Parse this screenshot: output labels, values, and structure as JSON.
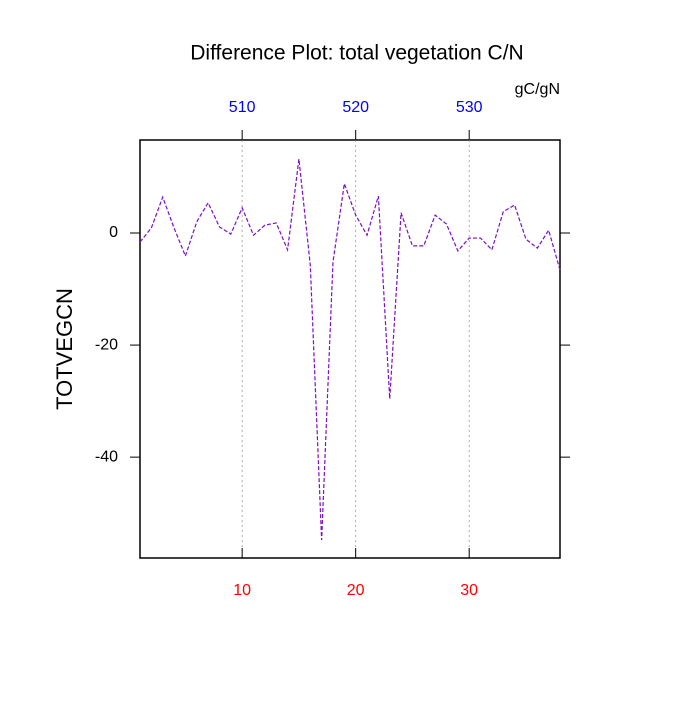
{
  "chart_data": {
    "type": "line",
    "title": "Difference Plot: total vegetation C/N",
    "ylabel": "TOTVEGCN",
    "units": "gC/gN",
    "x": [
      1,
      2,
      3,
      4,
      5,
      6,
      7,
      8,
      9,
      10,
      11,
      12,
      13,
      14,
      15,
      16,
      17,
      18,
      19,
      20,
      21,
      22,
      23,
      24,
      25,
      26,
      27,
      28,
      29,
      30,
      31,
      32,
      33,
      34,
      35,
      36,
      37,
      38
    ],
    "series": [
      {
        "name": "TOTVEGCN",
        "color": "#7a10c8",
        "values": [
          -1.6,
          0.9,
          6.4,
          0.9,
          -4.1,
          2,
          5.4,
          1.1,
          -0.2,
          4.5,
          -0.4,
          1.4,
          1.8,
          -3,
          13.2,
          -5.7,
          -54.8,
          -5.2,
          8.8,
          3.2,
          -0.4,
          6.6,
          -29.6,
          3.6,
          -2.3,
          -2.3,
          3.2,
          1.6,
          -3.2,
          -0.9,
          -0.9,
          -3,
          3.8,
          5,
          -1.1,
          -2.7,
          0.5,
          -6.6
        ]
      }
    ],
    "xlim": [
      1,
      38
    ],
    "xticks": [
      10,
      20,
      30
    ],
    "xtick_color": "#ff0000",
    "x2lim": [
      501,
      538
    ],
    "x2ticks": [
      510,
      520,
      530
    ],
    "x2tick_color": "#0000ff",
    "ylim": [
      -58,
      16.6
    ],
    "yticks": [
      -40,
      -20,
      0
    ],
    "grid": true
  }
}
